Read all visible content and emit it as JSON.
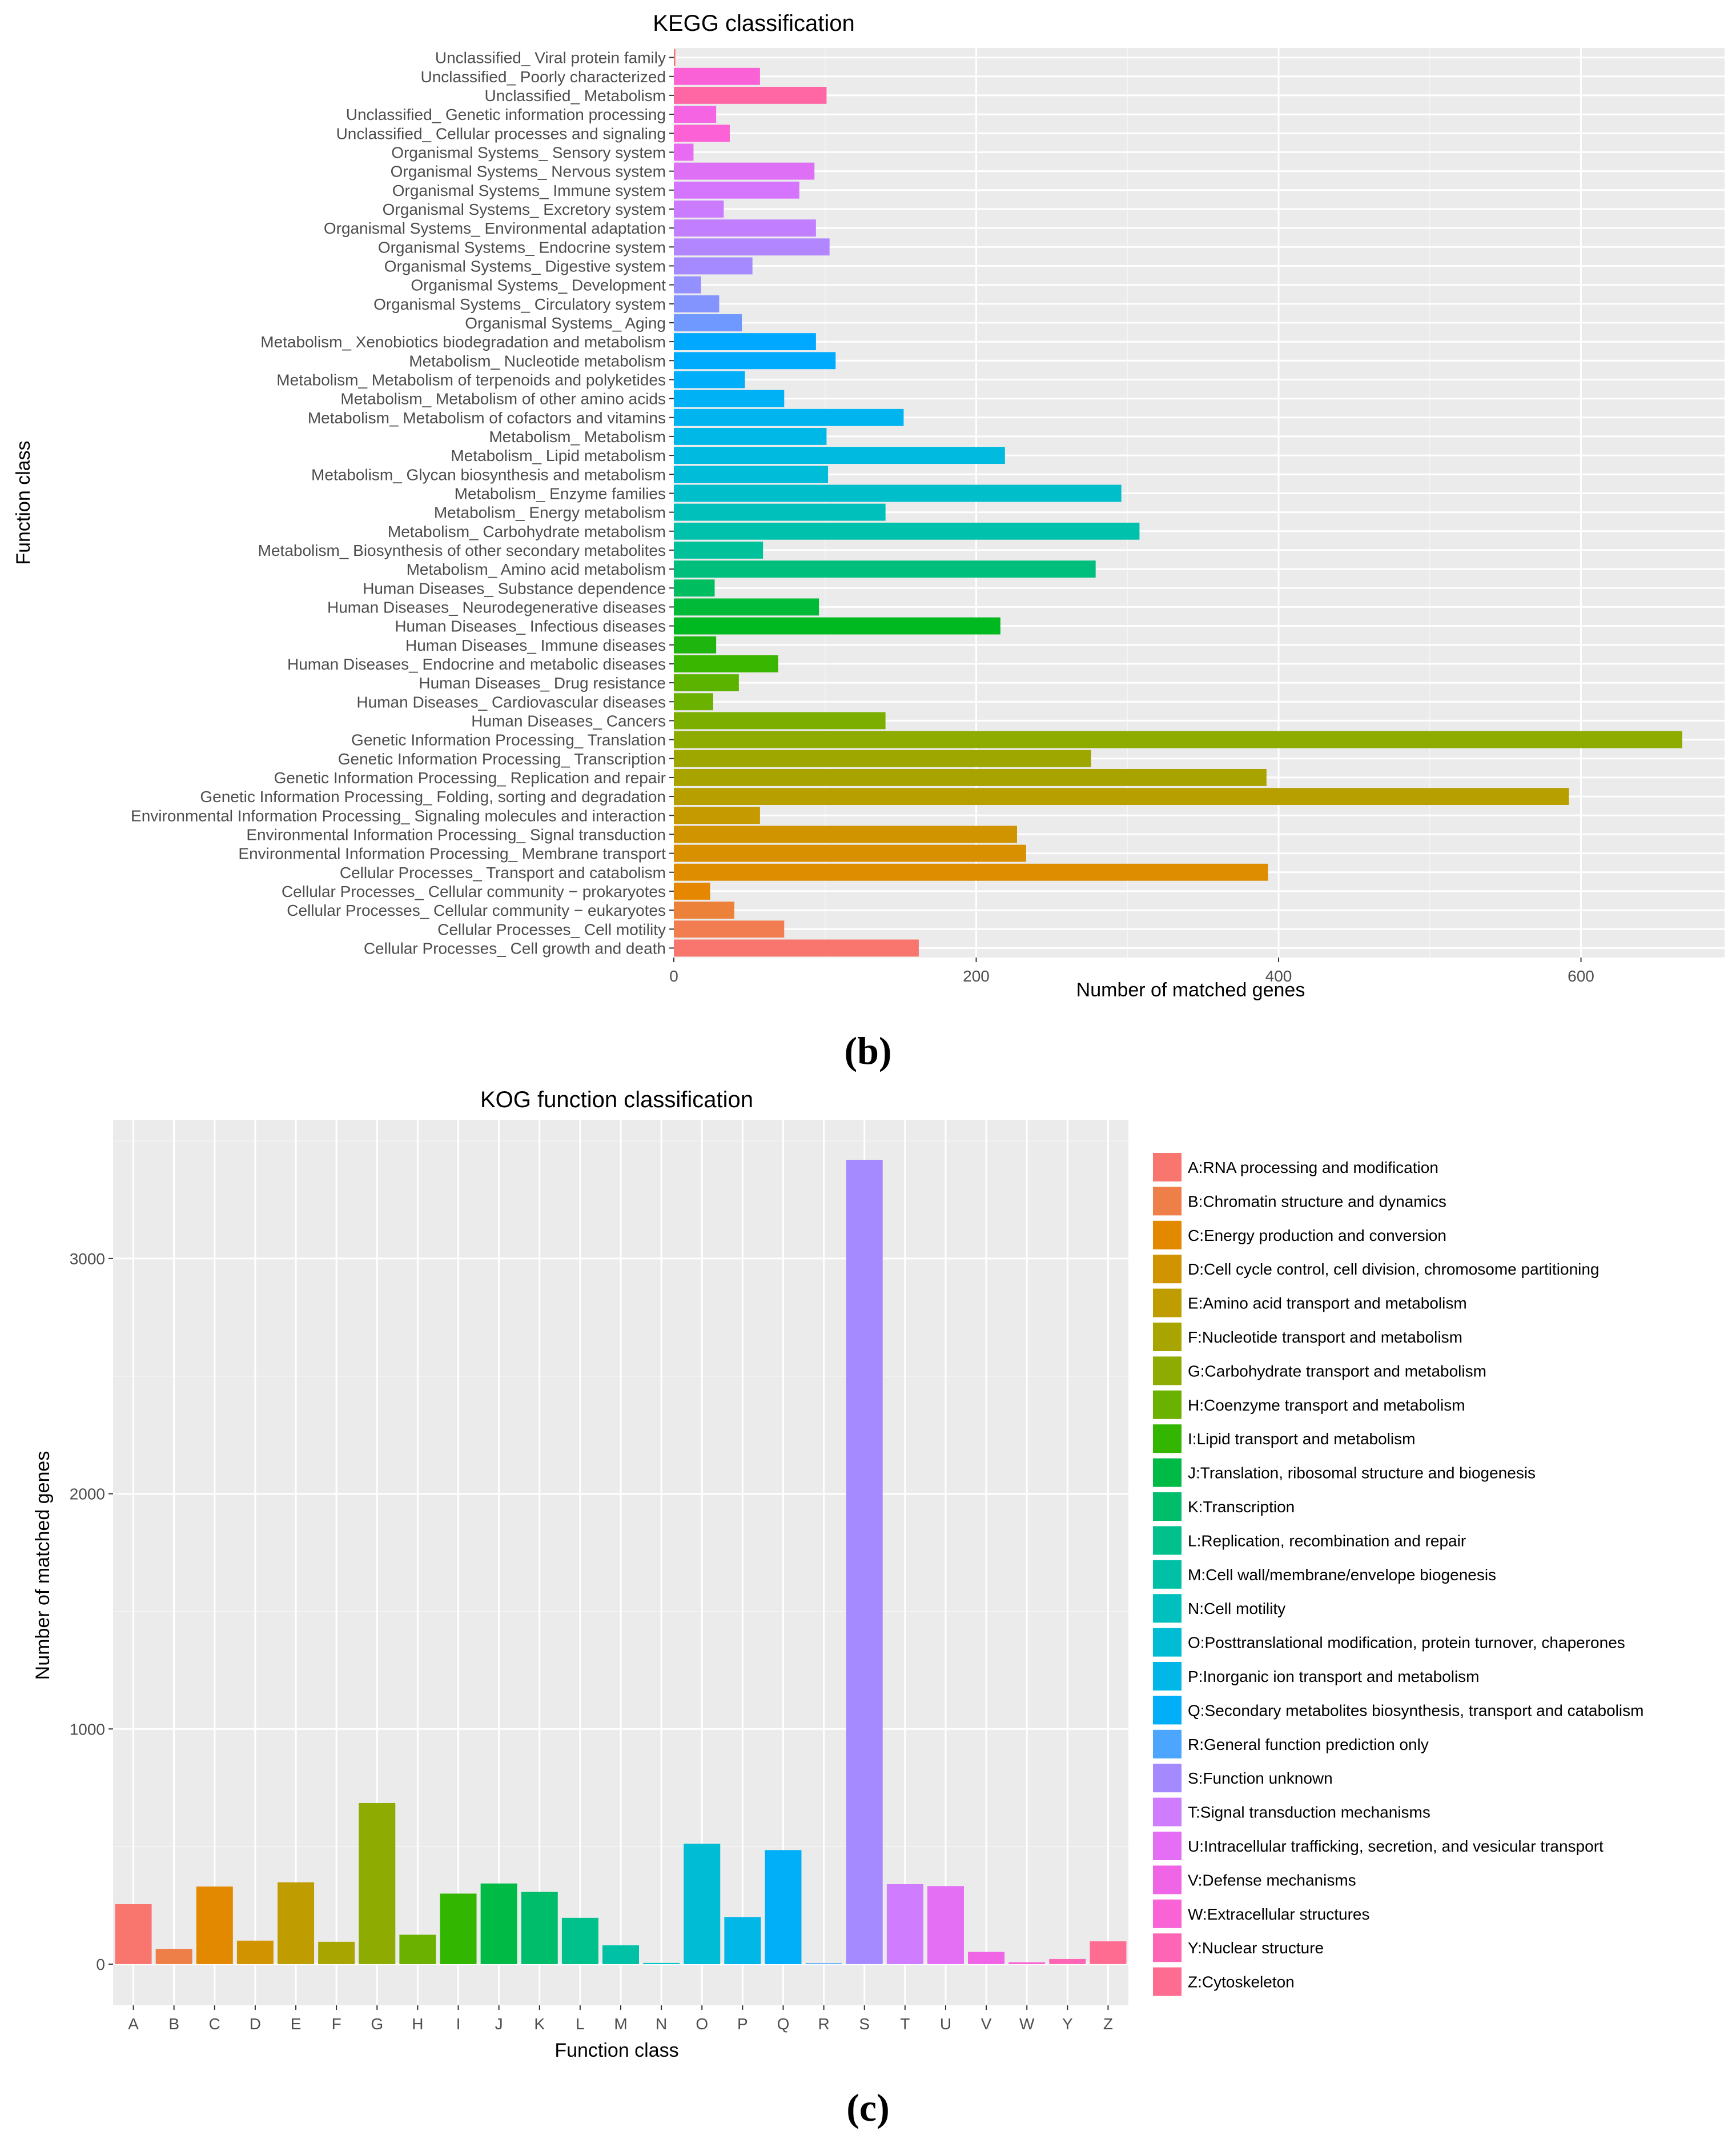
{
  "chart_data": [
    {
      "type": "bar",
      "orientation": "horizontal",
      "title": "KEGG classification",
      "xlabel": "Number of matched genes",
      "ylabel": "Function class",
      "panel_label": "(b)",
      "xlim": [
        0,
        695
      ],
      "xticks": [
        0,
        200,
        400,
        600
      ],
      "grid": true,
      "categories": [
        "Unclassified_ Viral protein family",
        "Unclassified_ Poorly characterized",
        "Unclassified_ Metabolism",
        "Unclassified_ Genetic information processing",
        "Unclassified_ Cellular processes and signaling",
        "Organismal Systems_ Sensory system",
        "Organismal Systems_ Nervous system",
        "Organismal Systems_ Immune system",
        "Organismal Systems_ Excretory system",
        "Organismal Systems_ Environmental adaptation",
        "Organismal Systems_ Endocrine system",
        "Organismal Systems_ Digestive system",
        "Organismal Systems_ Development",
        "Organismal Systems_ Circulatory system",
        "Organismal Systems_ Aging",
        "Metabolism_ Xenobiotics biodegradation and metabolism",
        "Metabolism_ Nucleotide metabolism",
        "Metabolism_ Metabolism of terpenoids and polyketides",
        "Metabolism_ Metabolism of other amino acids",
        "Metabolism_ Metabolism of cofactors and vitamins",
        "Metabolism_ Metabolism",
        "Metabolism_ Lipid metabolism",
        "Metabolism_ Glycan biosynthesis and metabolism",
        "Metabolism_ Enzyme families",
        "Metabolism_ Energy metabolism",
        "Metabolism_ Carbohydrate metabolism",
        "Metabolism_ Biosynthesis of other secondary metabolites",
        "Metabolism_ Amino acid metabolism",
        "Human Diseases_ Substance dependence",
        "Human Diseases_ Neurodegenerative diseases",
        "Human Diseases_ Infectious diseases",
        "Human Diseases_ Immune diseases",
        "Human Diseases_ Endocrine and metabolic diseases",
        "Human Diseases_ Drug resistance",
        "Human Diseases_ Cardiovascular diseases",
        "Human Diseases_ Cancers",
        "Genetic Information Processing_ Translation",
        "Genetic Information Processing_ Transcription",
        "Genetic Information Processing_ Replication and repair",
        "Genetic Information Processing_ Folding, sorting and degradation",
        "Environmental Information Processing_ Signaling molecules and interaction",
        "Environmental Information Processing_ Signal transduction",
        "Environmental Information Processing_ Membrane transport",
        "Cellular Processes_ Transport and catabolism",
        "Cellular Processes_ Cellular community − prokaryotes",
        "Cellular Processes_ Cellular community − eukaryotes",
        "Cellular Processes_ Cell motility",
        "Cellular Processes_ Cell growth and death"
      ],
      "values": [
        1,
        57,
        101,
        28,
        37,
        13,
        93,
        83,
        33,
        94,
        103,
        52,
        18,
        30,
        45,
        94,
        107,
        47,
        73,
        152,
        101,
        219,
        102,
        296,
        140,
        308,
        59,
        279,
        27,
        96,
        216,
        28,
        69,
        43,
        26,
        140,
        667,
        276,
        392,
        592,
        57,
        227,
        233,
        393,
        24,
        40,
        73,
        162
      ],
      "colors": [
        "#F8766D",
        "#FB61D7",
        "#FF67A4",
        "#F565E3",
        "#FC61D5",
        "#E76BF3",
        "#DE70F5",
        "#D575FE",
        "#CB7BFF",
        "#C17FFF",
        "#B286FF",
        "#A58AFF",
        "#9590FF",
        "#8494FF",
        "#7099FF",
        "#00A9FF",
        "#00ABFD",
        "#00AEFA",
        "#00B2F5",
        "#00B5EF",
        "#00B8E7",
        "#00BAE0",
        "#00BCD8",
        "#00BECA",
        "#00C0BB",
        "#00C1AB",
        "#00C19A",
        "#00BF7D",
        "#00BD5F",
        "#00BA38",
        "#00B81F",
        "#1DB50E",
        "#39B600",
        "#5BB300",
        "#6BB100",
        "#7CAE00",
        "#8EAB00",
        "#9DA700",
        "#A9A300",
        "#B79F00",
        "#C49A00",
        "#CF9400",
        "#D89000",
        "#DE8C00",
        "#E58700",
        "#EC8239",
        "#F17D50",
        "#F8766D"
      ]
    },
    {
      "type": "bar",
      "title": "KOG function classification",
      "xlabel": "Function class",
      "ylabel": "Number of matched genes",
      "panel_label": "(c)",
      "ylim": [
        -175,
        3590
      ],
      "yticks": [
        0,
        1000,
        2000,
        3000
      ],
      "grid": true,
      "legend_position": "right",
      "categories": [
        "A",
        "B",
        "C",
        "D",
        "E",
        "F",
        "G",
        "H",
        "I",
        "J",
        "K",
        "L",
        "M",
        "N",
        "O",
        "P",
        "Q",
        "R",
        "S",
        "T",
        "U",
        "V",
        "W",
        "Y",
        "Z"
      ],
      "values": [
        255,
        65,
        330,
        100,
        348,
        95,
        685,
        125,
        300,
        343,
        307,
        197,
        80,
        5,
        512,
        200,
        485,
        4,
        3420,
        340,
        332,
        52,
        8,
        22,
        97
      ],
      "legend": [
        "A:RNA processing and modification",
        "B:Chromatin structure and dynamics",
        "C:Energy production and conversion",
        "D:Cell cycle control, cell division, chromosome partitioning",
        "E:Amino acid transport and metabolism",
        "F:Nucleotide transport and metabolism",
        "G:Carbohydrate transport and metabolism",
        "H:Coenzyme transport and metabolism",
        "I:Lipid transport and metabolism",
        "J:Translation, ribosomal structure and biogenesis",
        "K:Transcription",
        "L:Replication, recombination and repair",
        "M:Cell wall/membrane/envelope biogenesis",
        "N:Cell motility",
        "O:Posttranslational modification, protein turnover, chaperones",
        "P:Inorganic ion transport and metabolism",
        "Q:Secondary metabolites biosynthesis, transport and catabolism",
        "R:General function prediction only",
        "S:Function unknown",
        "T:Signal transduction mechanisms",
        "U:Intracellular trafficking, secretion, and vesicular transport",
        "V:Defense mechanisms",
        "W:Extracellular structures",
        "Y:Nuclear structure",
        "Z:Cytoskeleton"
      ],
      "colors": [
        "#F8766D",
        "#EF7F48",
        "#E38900",
        "#D29300",
        "#BF9C00",
        "#A8A400",
        "#8DAB00",
        "#6BB100",
        "#33B600",
        "#00BA46",
        "#00BD6B",
        "#00C08B",
        "#00C1A6",
        "#00C0BF",
        "#00BDD5",
        "#00B7E8",
        "#00AFF8",
        "#4CA5FF",
        "#A58AFF",
        "#CF7CFF",
        "#E46FF5",
        "#F064E6",
        "#F963D6",
        "#FE65B5",
        "#FF6C91"
      ]
    }
  ]
}
